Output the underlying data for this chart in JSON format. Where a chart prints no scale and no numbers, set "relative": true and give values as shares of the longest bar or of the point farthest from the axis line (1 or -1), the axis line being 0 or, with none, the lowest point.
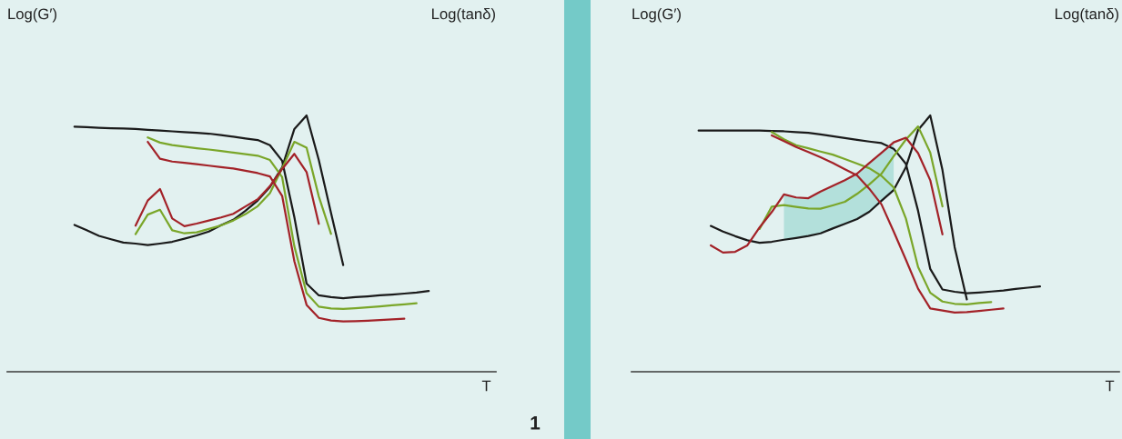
{
  "chart_data": [
    {
      "type": "line",
      "relative": true,
      "tick_labels": false,
      "line_style": "solid",
      "categories": [
        null,
        null,
        null,
        null,
        null,
        null,
        null,
        null,
        null,
        null,
        null,
        null,
        null,
        null,
        null,
        null,
        null,
        null,
        null,
        null,
        null,
        null,
        null,
        null,
        null,
        null,
        null,
        null,
        null,
        null,
        null,
        null,
        null,
        null,
        null,
        null,
        null,
        null,
        null,
        null
      ],
      "ylabel": "Log(G′)",
      "y2label": "Log(tanδ)",
      "xlabel": "T",
      "annotations": [
        "1"
      ],
      "series": [
        {
          "color": "#1a1a1a",
          "values": [
            null,
            null,
            null,
            null,
            null,
            0.956,
            0.954,
            0.952,
            0.95,
            0.949,
            0.947,
            0.944,
            0.941,
            0.938,
            0.935,
            0.932,
            0.929,
            0.923,
            0.917,
            0.91,
            0.904,
            0.884,
            0.823,
            0.603,
            0.344,
            0.298,
            0.291,
            0.287,
            0.291,
            0.294,
            0.298,
            0.301,
            0.305,
            0.309,
            0.315,
            null,
            null,
            null,
            null,
            null
          ]
        },
        {
          "color": "#1a1a1a",
          "values": [
            null,
            null,
            null,
            null,
            null,
            0.573,
            0.552,
            0.53,
            0.517,
            0.504,
            0.5,
            0.494,
            0.5,
            0.507,
            0.519,
            0.532,
            0.547,
            0.572,
            0.593,
            0.628,
            0.668,
            0.721,
            0.798,
            0.947,
            1.0,
            0.826,
            0.62,
            0.416,
            null,
            null,
            null,
            null,
            null,
            null,
            null,
            null,
            null,
            null,
            null,
            null
          ]
        },
        {
          "color": "#7aa629",
          "values": [
            null,
            null,
            null,
            null,
            null,
            null,
            null,
            null,
            null,
            null,
            null,
            0.914,
            0.894,
            0.884,
            0.878,
            0.872,
            0.867,
            0.861,
            0.855,
            0.849,
            0.843,
            0.826,
            0.759,
            0.489,
            0.307,
            0.254,
            0.247,
            0.245,
            0.248,
            0.251,
            0.255,
            0.259,
            0.263,
            0.267,
            null,
            null,
            null,
            null,
            null,
            null
          ]
        },
        {
          "color": "#7aa629",
          "values": [
            null,
            null,
            null,
            null,
            null,
            null,
            null,
            null,
            null,
            null,
            0.537,
            0.613,
            0.632,
            0.552,
            0.54,
            0.544,
            0.557,
            0.571,
            0.59,
            0.615,
            0.646,
            0.697,
            0.794,
            0.897,
            0.874,
            0.684,
            0.538,
            null,
            null,
            null,
            null,
            null,
            null,
            null,
            null,
            null,
            null,
            null,
            null,
            null
          ]
        },
        {
          "color": "#a32228",
          "values": [
            null,
            null,
            null,
            null,
            null,
            null,
            null,
            null,
            null,
            null,
            null,
            0.897,
            0.831,
            0.82,
            0.815,
            0.81,
            0.804,
            0.798,
            0.793,
            0.784,
            0.775,
            0.762,
            0.686,
            0.431,
            0.261,
            0.21,
            0.2,
            0.196,
            0.197,
            0.199,
            0.202,
            0.204,
            0.207,
            null,
            null,
            null,
            null,
            null,
            null,
            null
          ]
        },
        {
          "color": "#a32228",
          "values": [
            null,
            null,
            null,
            null,
            null,
            null,
            null,
            null,
            null,
            null,
            0.57,
            0.668,
            0.713,
            0.598,
            0.568,
            0.578,
            0.59,
            0.602,
            0.616,
            0.645,
            0.673,
            0.724,
            0.791,
            0.85,
            0.779,
            0.577,
            null,
            null,
            null,
            null,
            null,
            null,
            null,
            null,
            null,
            null,
            null,
            null,
            null,
            null
          ]
        }
      ]
    },
    {
      "type": "line",
      "relative": true,
      "tick_labels": false,
      "line_style": "solid",
      "categories": [
        null,
        null,
        null,
        null,
        null,
        null,
        null,
        null,
        null,
        null,
        null,
        null,
        null,
        null,
        null,
        null,
        null,
        null,
        null,
        null,
        null,
        null,
        null,
        null,
        null,
        null,
        null,
        null,
        null,
        null,
        null,
        null,
        null,
        null,
        null,
        null,
        null,
        null,
        null,
        null
      ],
      "ylabel": "Log(G′)",
      "y2label": "Log(tanδ)",
      "xlabel": "T",
      "series": [
        {
          "color": "#1a1a1a",
          "values": [
            null,
            null,
            null,
            null,
            null,
            0.941,
            0.941,
            0.941,
            0.941,
            0.941,
            0.941,
            0.939,
            0.938,
            0.935,
            0.932,
            0.926,
            0.919,
            0.912,
            0.905,
            0.898,
            0.892,
            0.87,
            0.811,
            0.628,
            0.401,
            0.321,
            0.312,
            0.306,
            0.309,
            0.313,
            0.317,
            0.323,
            0.328,
            0.333,
            null,
            null,
            null,
            null,
            null,
            null
          ]
        },
        {
          "color": "#1a1a1a",
          "values": [
            null,
            null,
            null,
            null,
            null,
            null,
            0.569,
            0.547,
            0.529,
            0.513,
            0.503,
            0.507,
            0.515,
            0.522,
            0.53,
            0.54,
            0.559,
            0.577,
            0.596,
            0.624,
            0.667,
            0.709,
            0.798,
            0.943,
            1.0,
            0.787,
            0.486,
            0.282,
            null,
            null,
            null,
            null,
            null,
            null,
            null,
            null,
            null,
            null,
            null,
            null
          ]
        },
        {
          "color": "#7aa629",
          "values": [
            null,
            null,
            null,
            null,
            null,
            null,
            null,
            null,
            null,
            null,
            null,
            0.935,
            0.907,
            0.884,
            0.872,
            0.859,
            0.847,
            0.83,
            0.812,
            0.794,
            0.764,
            0.719,
            0.598,
            0.409,
            0.308,
            0.274,
            0.265,
            0.263,
            0.268,
            0.272,
            null,
            null,
            null,
            null,
            null,
            null,
            null,
            null,
            null,
            null
          ]
        },
        {
          "color": "#7aa629",
          "values": [
            null,
            null,
            null,
            null,
            null,
            null,
            null,
            null,
            null,
            null,
            0.557,
            0.644,
            0.65,
            0.643,
            0.637,
            0.636,
            0.649,
            0.663,
            0.694,
            0.731,
            0.773,
            0.841,
            0.906,
            0.957,
            0.855,
            0.645,
            null,
            null,
            null,
            null,
            null,
            null,
            null,
            null,
            null,
            null,
            null,
            null,
            null,
            null
          ]
        },
        {
          "color": "#a32228",
          "values": [
            null,
            null,
            null,
            null,
            null,
            null,
            null,
            null,
            null,
            null,
            null,
            0.922,
            0.9,
            0.877,
            0.857,
            0.837,
            0.815,
            0.79,
            0.766,
            0.714,
            0.653,
            0.547,
            0.437,
            0.324,
            0.247,
            0.239,
            0.231,
            0.233,
            0.237,
            0.242,
            0.247,
            null,
            null,
            null,
            null,
            null,
            null,
            null,
            null,
            null
          ]
        },
        {
          "color": "#a32228",
          "values": [
            null,
            null,
            null,
            null,
            null,
            null,
            0.493,
            0.465,
            0.468,
            0.493,
            0.563,
            0.623,
            0.692,
            0.68,
            0.677,
            0.703,
            0.725,
            0.747,
            0.773,
            0.814,
            0.854,
            0.895,
            0.913,
            0.853,
            0.747,
            0.536,
            null,
            null,
            null,
            null,
            null,
            null,
            null,
            null,
            null,
            null,
            null,
            null,
            null,
            null
          ],
          "lower": [
            null,
            null,
            null,
            null,
            null,
            null,
            null,
            null,
            null,
            null,
            null,
            null,
            0.515,
            0.522,
            0.53,
            0.54,
            0.559,
            0.577,
            0.596,
            0.624,
            0.667,
            0.709,
            null,
            null,
            null,
            null,
            null,
            null,
            null,
            null,
            null,
            null,
            null,
            null,
            null,
            null,
            null,
            null,
            null,
            null
          ],
          "upper": [
            null,
            null,
            null,
            null,
            null,
            null,
            null,
            null,
            null,
            null,
            null,
            null,
            0.692,
            0.68,
            0.677,
            0.703,
            0.725,
            0.747,
            0.773,
            0.814,
            0.854,
            0.895,
            null,
            null,
            null,
            null,
            null,
            null,
            null,
            null,
            null,
            null,
            null,
            null,
            null,
            null,
            null,
            null,
            null,
            null
          ]
        }
      ]
    }
  ]
}
